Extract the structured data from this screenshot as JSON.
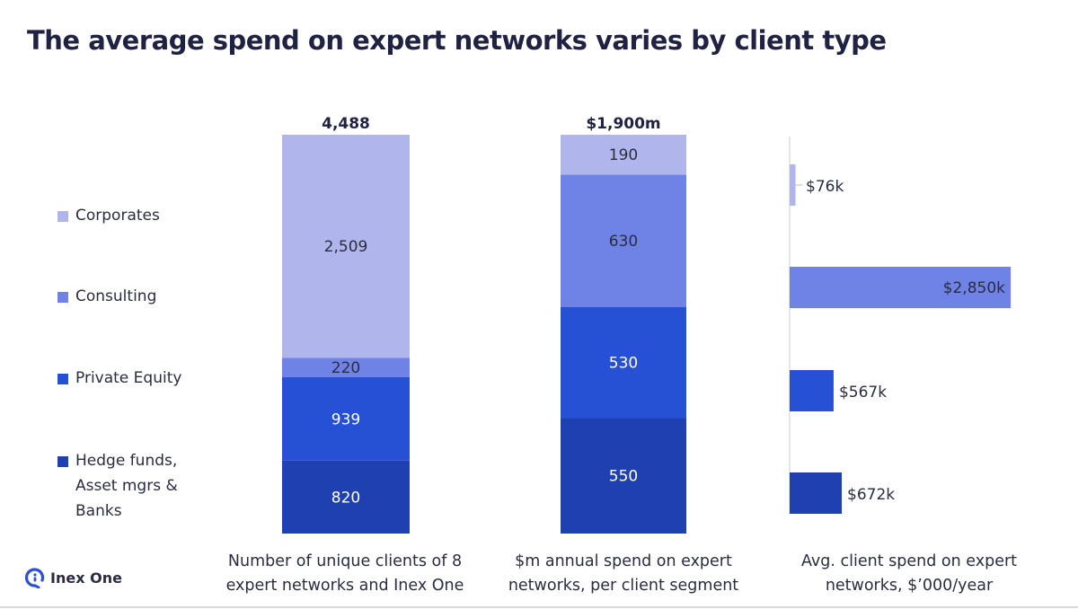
{
  "title": "The average spend on expert networks varies by client type",
  "logo": {
    "text": "Inex One",
    "icon": "inex-one-logo-icon",
    "color": "#2a50d6"
  },
  "chart_data": [
    {
      "type": "bar",
      "stacked": true,
      "caption": "Number of unique clients of 8 expert networks and Inex One",
      "caption_lines": [
        "Number of unique clients of 8",
        "expert networks and Inex One"
      ],
      "total_label": "4,488",
      "total": 4488,
      "series": [
        {
          "name": "Hedge funds, Asset mgrs & Banks",
          "value": 820,
          "label": "820"
        },
        {
          "name": "Private Equity",
          "value": 939,
          "label": "939"
        },
        {
          "name": "Consulting",
          "value": 220,
          "label": "220"
        },
        {
          "name": "Corporates",
          "value": 2509,
          "label": "2,509"
        }
      ]
    },
    {
      "type": "bar",
      "stacked": true,
      "caption_lines": [
        "$m annual spend on expert",
        "networks, per client segment"
      ],
      "total_label": "$1,900m",
      "total": 1900,
      "series": [
        {
          "name": "Hedge funds, Asset mgrs & Banks",
          "value": 550,
          "label": "550"
        },
        {
          "name": "Private Equity",
          "value": 530,
          "label": "530"
        },
        {
          "name": "Consulting",
          "value": 630,
          "label": "630"
        },
        {
          "name": "Corporates",
          "value": 190,
          "label": "190"
        }
      ]
    },
    {
      "type": "bar",
      "orientation": "horizontal",
      "caption_lines": [
        "Avg. client spend on expert",
        "networks, $’000/year"
      ],
      "xlim": [
        0,
        2850
      ],
      "series": [
        {
          "name": "Corporates",
          "value": 76,
          "label": "$76k"
        },
        {
          "name": "Consulting",
          "value": 2850,
          "label": "$2,850k"
        },
        {
          "name": "Private Equity",
          "value": 567,
          "label": "$567k"
        },
        {
          "name": "Hedge funds, Asset mgrs & Banks",
          "value": 672,
          "label": "$672k"
        }
      ]
    }
  ],
  "legend": [
    {
      "name": "Corporates",
      "lines": [
        "Corporates"
      ],
      "color": "#b0b6ec"
    },
    {
      "name": "Consulting",
      "lines": [
        "Consulting"
      ],
      "color": "#6f82e6"
    },
    {
      "name": "Private Equity",
      "lines": [
        "Private Equity"
      ],
      "color": "#2751d4"
    },
    {
      "name": "Hedge funds, Asset mgrs & Banks",
      "lines": [
        "Hedge funds,",
        "Asset mgrs &",
        "Banks"
      ],
      "color": "#1f40b0"
    }
  ],
  "colors": {
    "Corporates": "#b0b6ec",
    "Consulting": "#6f82e6",
    "Private Equity": "#2751d4",
    "Hedge funds, Asset mgrs & Banks": "#1f40b0"
  }
}
